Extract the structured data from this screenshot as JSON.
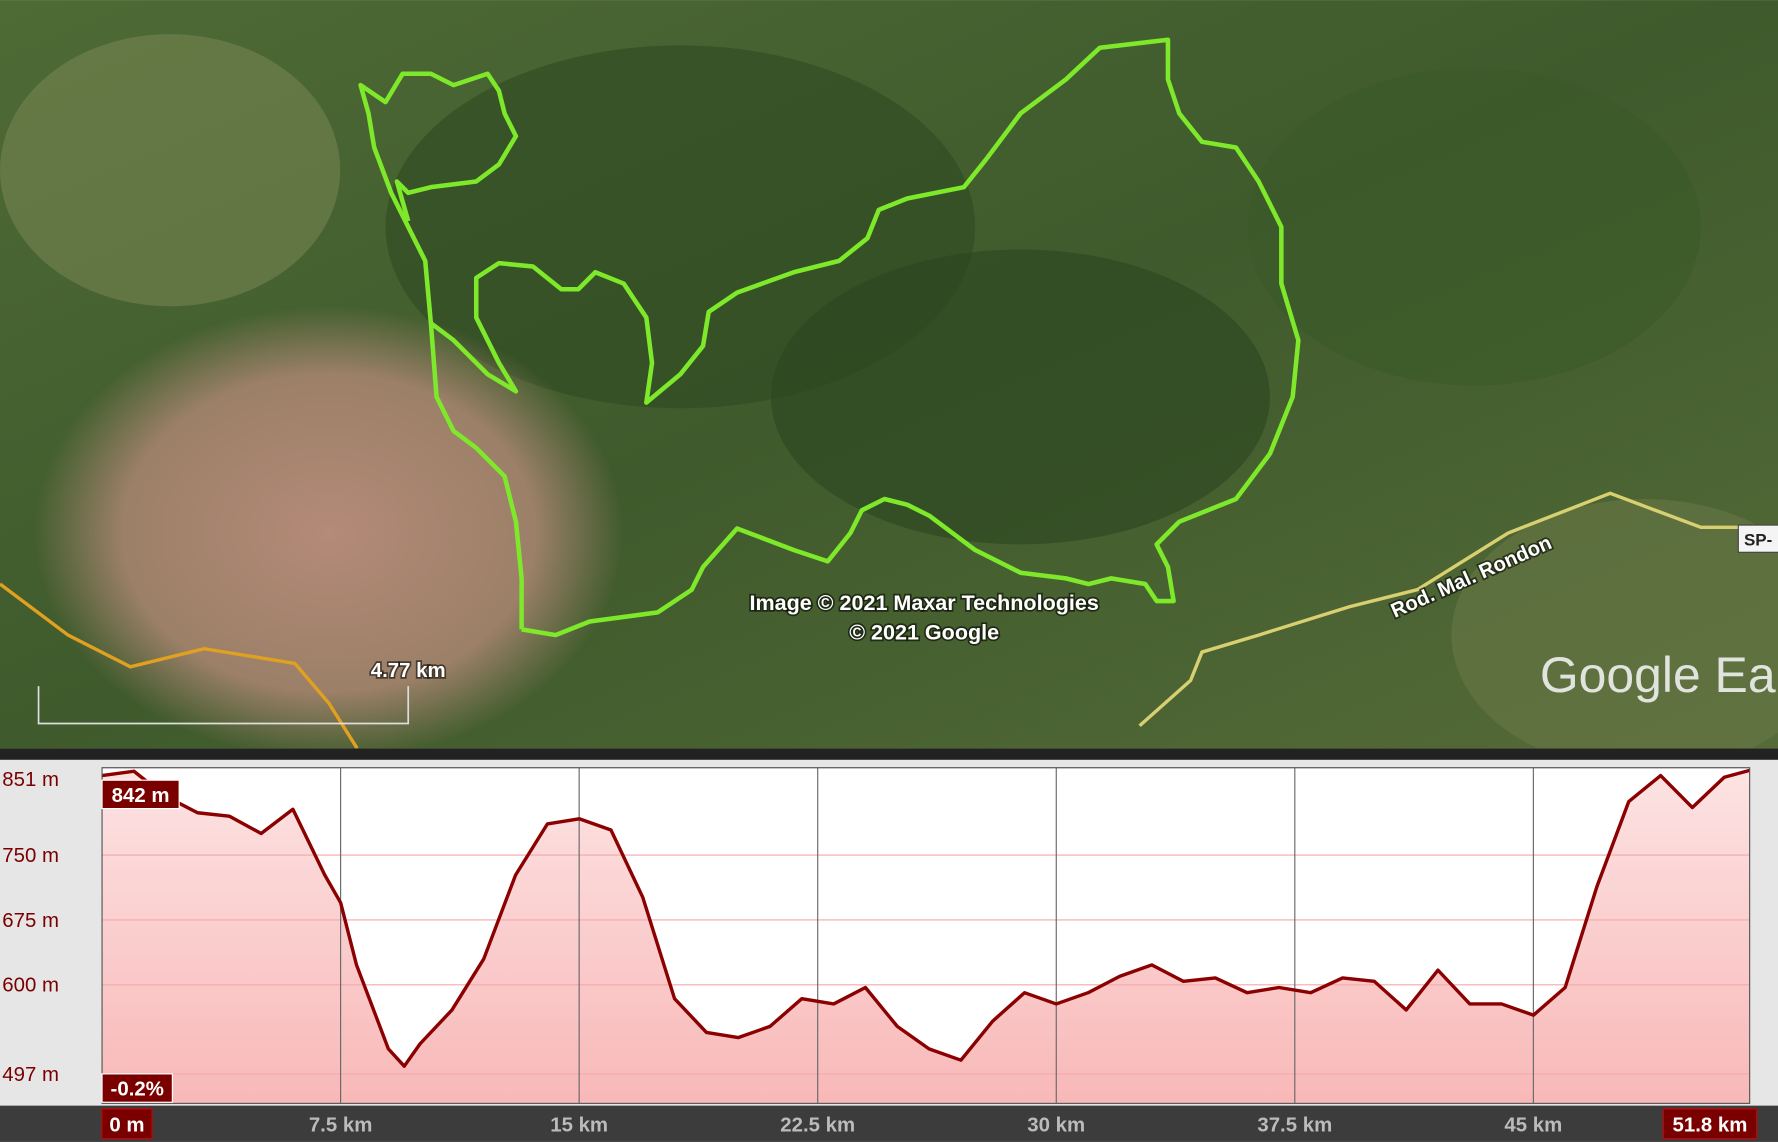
{
  "map": {
    "attribution": [
      "Image © 2021 Maxar Technologies",
      "© 2021 Google"
    ],
    "scale": "4.77 km",
    "road_label": "Rod. Mal. Rondon",
    "road_shield": "SP-",
    "logo": "Google Ear"
  },
  "chart_data": {
    "type": "line",
    "color": "#8b0000",
    "x": [
      0,
      1,
      2,
      3,
      4,
      5,
      6,
      7,
      7.5,
      8,
      9,
      9.5,
      10,
      11,
      12,
      13,
      14,
      15,
      16,
      17,
      18,
      19,
      20,
      21,
      22,
      23,
      24,
      25,
      26,
      27,
      28,
      29,
      30,
      31,
      32,
      33,
      34,
      35,
      36,
      37,
      38,
      39,
      40,
      41,
      42,
      43,
      44,
      45,
      46,
      47,
      48,
      49,
      50,
      51,
      51.8
    ],
    "values": [
      842,
      847,
      818,
      799,
      795,
      775,
      803,
      727,
      695,
      623,
      526,
      506,
      532,
      571,
      630,
      727,
      786,
      792,
      779,
      701,
      584,
      545,
      539,
      552,
      584,
      578,
      597,
      552,
      526,
      513,
      558,
      591,
      578,
      591,
      610,
      623,
      604,
      608,
      591,
      597,
      591,
      608,
      604,
      571,
      617,
      578,
      578,
      565,
      597,
      714,
      812,
      842,
      805,
      840,
      848
    ],
    "xlim": [
      0,
      51.8
    ],
    "ylim": [
      463,
      851
    ],
    "xticks": [
      {
        "value": 0,
        "label": "0 m"
      },
      {
        "value": 7.5,
        "label": "7.5 km"
      },
      {
        "value": 15,
        "label": "15 km"
      },
      {
        "value": 22.5,
        "label": "22.5 km"
      },
      {
        "value": 30,
        "label": "30 km"
      },
      {
        "value": 37.5,
        "label": "37.5 km"
      },
      {
        "value": 45,
        "label": "45 km"
      },
      {
        "value": 51.8,
        "label": "51.8 km"
      }
    ],
    "yticks": [
      {
        "value": 851,
        "label": "851 m"
      },
      {
        "value": 750,
        "label": "750 m"
      },
      {
        "value": 675,
        "label": "675 m"
      },
      {
        "value": 600,
        "label": "600 m"
      },
      {
        "value": 497,
        "label": "497 m"
      }
    ],
    "annotations": [
      "842 m",
      "-0.2%"
    ],
    "grid": true
  }
}
